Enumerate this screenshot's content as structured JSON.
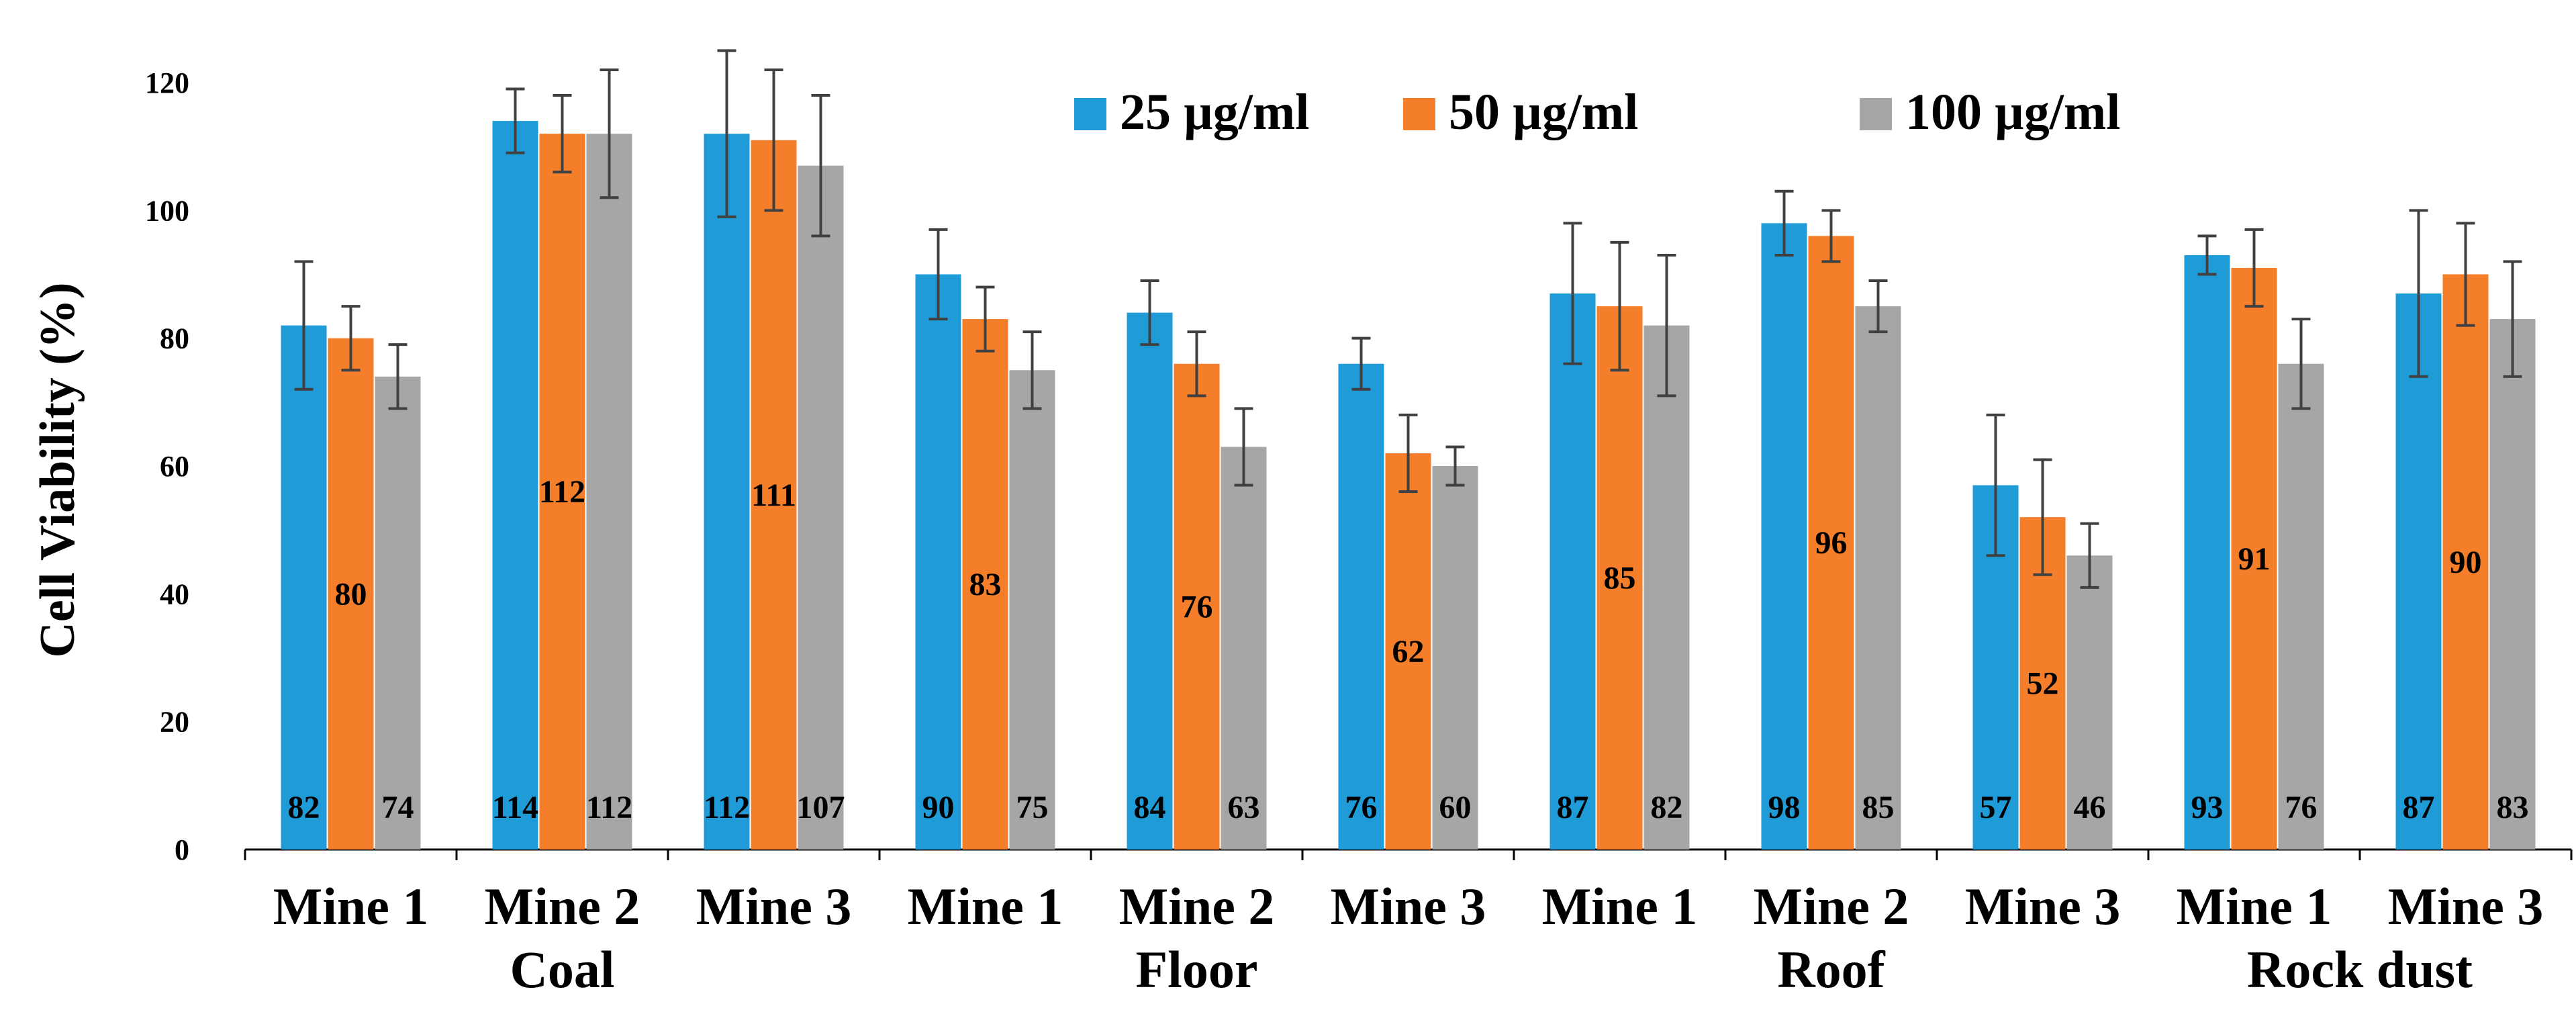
{
  "chart_data": {
    "type": "bar",
    "title": "",
    "ylabel": "Cell Viability (%)",
    "xlabel": "",
    "ylim": [
      0,
      120
    ],
    "yticks": [
      "0",
      "20",
      "40",
      "60",
      "80",
      "100",
      "120"
    ],
    "legend_position": "top-right",
    "categories": [
      "Mine 1",
      "Mine 2",
      "Mine 3",
      "Mine 1",
      "Mine 2",
      "Mine 3",
      "Mine 1",
      "Mine 2",
      "Mine 3",
      "Mine 1",
      "Mine 3"
    ],
    "groups": [
      {
        "label": "Coal",
        "span": [
          0,
          2
        ]
      },
      {
        "label": "Floor",
        "span": [
          3,
          5
        ]
      },
      {
        "label": "Roof",
        "span": [
          6,
          8
        ]
      },
      {
        "label": "Rock dust",
        "span": [
          9,
          10
        ]
      }
    ],
    "series": [
      {
        "name": "25 µg/ml",
        "color": "#1F9BD7",
        "values": [
          82,
          114,
          112,
          90,
          84,
          76,
          87,
          98,
          57,
          93,
          87
        ],
        "errors": [
          10,
          5,
          13,
          7,
          5,
          4,
          11,
          5,
          11,
          3,
          13
        ]
      },
      {
        "name": "50 µg/ml",
        "color": "#F47E2A",
        "values": [
          80,
          112,
          111,
          83,
          76,
          62,
          85,
          96,
          52,
          91,
          90
        ],
        "errors": [
          5,
          6,
          11,
          5,
          5,
          6,
          10,
          4,
          9,
          6,
          8
        ]
      },
      {
        "name": "100 µg/ml",
        "color": "#A6A6A6",
        "values": [
          74,
          112,
          107,
          75,
          63,
          60,
          82,
          85,
          46,
          76,
          83
        ],
        "errors": [
          5,
          10,
          11,
          6,
          6,
          3,
          11,
          4,
          5,
          7,
          9
        ]
      }
    ],
    "data_labels": {
      "25 µg/ml": [
        "82",
        "114",
        "112",
        "90",
        "84",
        "76",
        "87",
        "98",
        "57",
        "93",
        "87"
      ],
      "50 µg/ml": [
        "80",
        "112",
        "111",
        "83",
        "76",
        "62",
        "85",
        "96",
        "52",
        "91",
        "90"
      ],
      "100 µg/ml": [
        "74",
        "112",
        "107",
        "75",
        "63",
        "60",
        "82",
        "85",
        "46",
        "76",
        "83"
      ]
    }
  }
}
